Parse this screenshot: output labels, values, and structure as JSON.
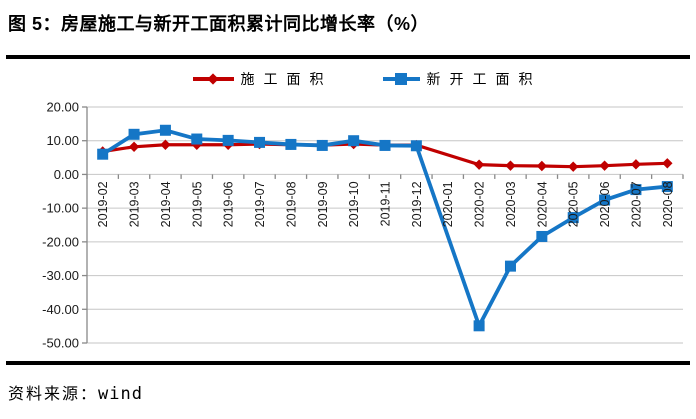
{
  "page": {
    "source_label": "资料来源：",
    "source_value": "wind"
  },
  "chart_data": {
    "type": "line",
    "title": "图 5：房屋施工与新开工面积累计同比增长率（%）",
    "categories": [
      "2019-02",
      "2019-03",
      "2019-04",
      "2019-05",
      "2019-06",
      "2019-07",
      "2019-08",
      "2019-09",
      "2019-10",
      "2019-11",
      "2019-12",
      "2020-01",
      "2020-02",
      "2020-03",
      "2020-04",
      "2020-05",
      "2020-06",
      "2020-07",
      "2020-08"
    ],
    "series": [
      {
        "name": "施工面积",
        "color": "#c00000",
        "marker": "diamond",
        "values": [
          6.8,
          8.2,
          8.8,
          8.8,
          8.8,
          9.0,
          8.8,
          8.7,
          9.0,
          8.7,
          8.7,
          null,
          2.9,
          2.6,
          2.5,
          2.3,
          2.6,
          3.0,
          3.3
        ]
      },
      {
        "name": "新开工面积",
        "color": "#1576c6",
        "marker": "square",
        "values": [
          6.0,
          11.9,
          13.1,
          10.5,
          10.1,
          9.5,
          8.9,
          8.6,
          10.0,
          8.6,
          8.5,
          null,
          -44.9,
          -27.2,
          -18.4,
          -12.8,
          -7.6,
          -4.5,
          -3.6
        ]
      }
    ],
    "xlabel": "",
    "ylabel": "",
    "ylim": [
      -50,
      20
    ],
    "ytick_step": 10,
    "ytick_labels": [
      "20.00",
      "10.00",
      "0.00",
      "-10.00",
      "-20.00",
      "-30.00",
      "-40.00",
      "-50.00"
    ],
    "grid": true,
    "legend_position": "top",
    "colors": {
      "gridline": "#c6c6c6",
      "axis": "#898989",
      "tick_label": "#1a1a1a"
    }
  }
}
